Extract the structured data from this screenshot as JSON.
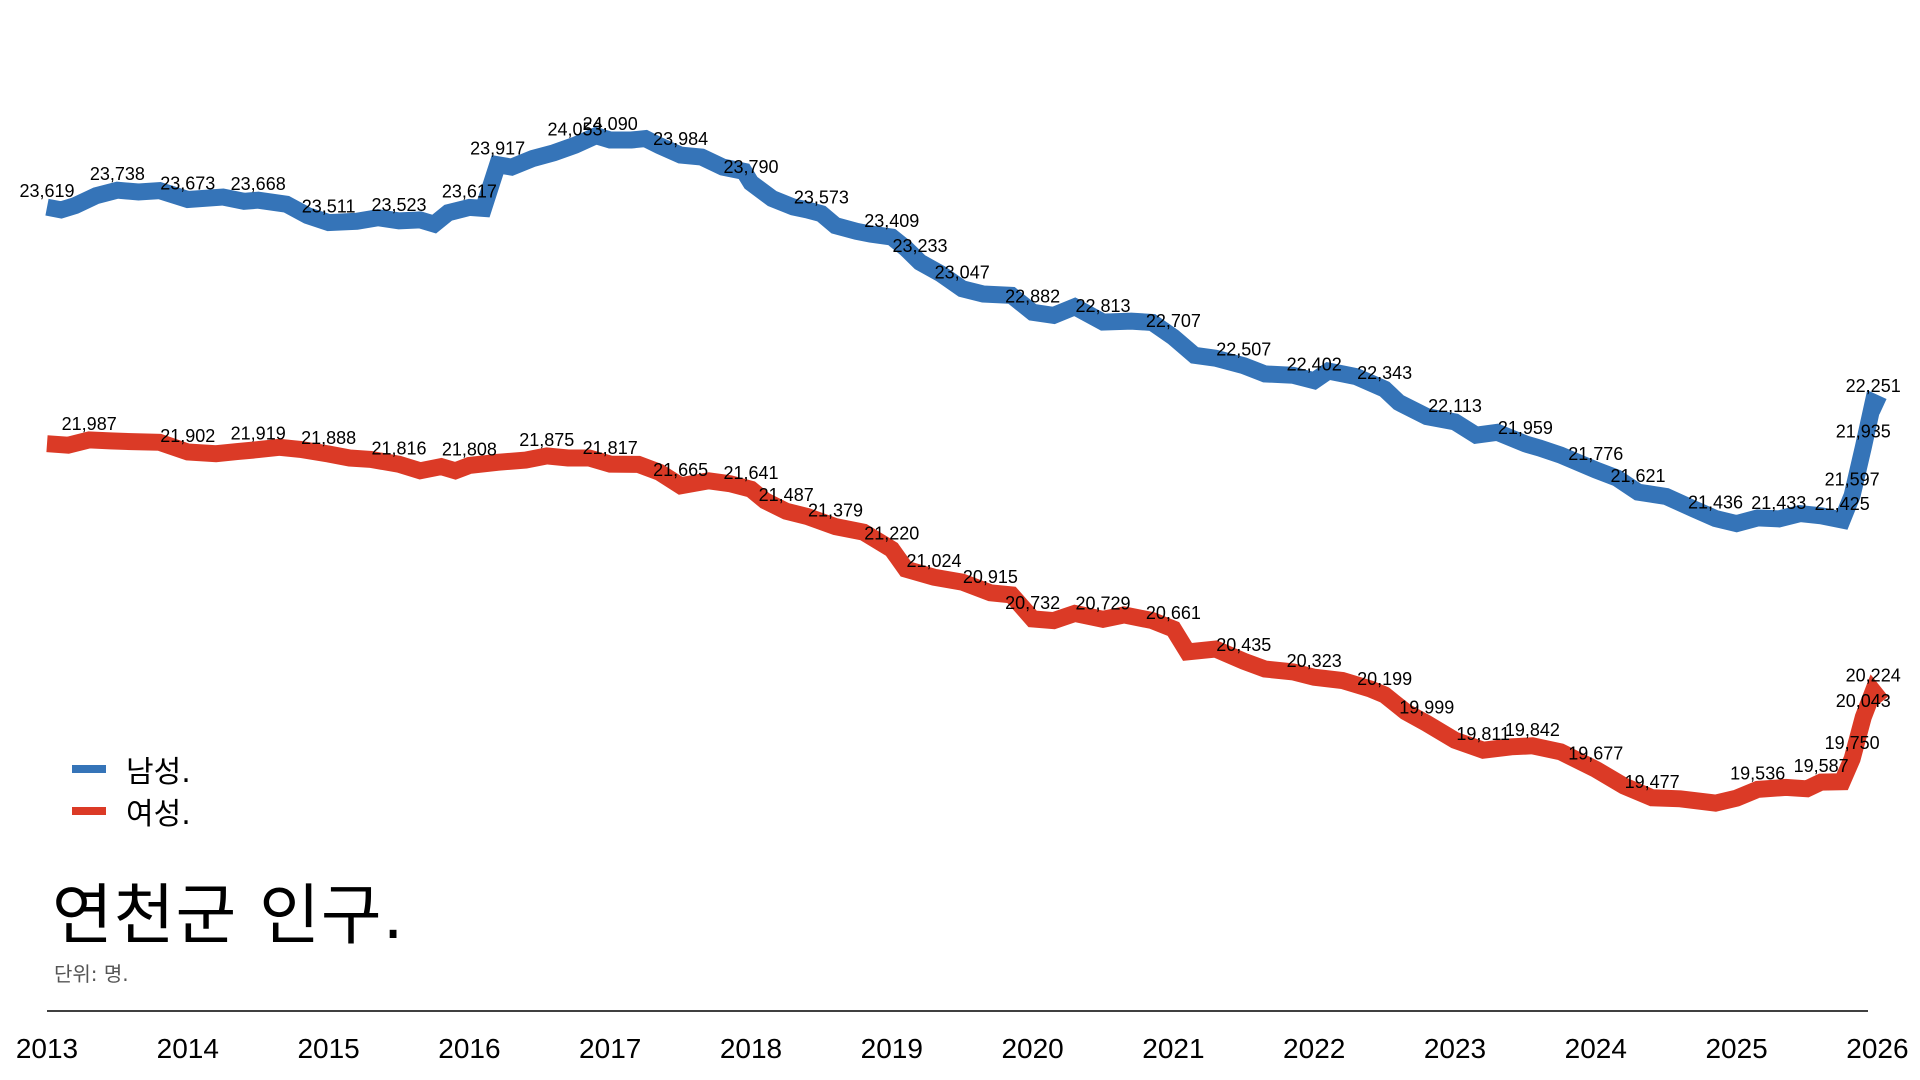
{
  "chart_data": {
    "type": "line",
    "title": "연천군 인구.",
    "subtitle": "단위: 명.",
    "xlabel": "",
    "ylabel": "",
    "xlim": [
      2013,
      2026
    ],
    "ylim": [
      19300,
      24200
    ],
    "grid": false,
    "legend_position": "bottom-left",
    "x_ticks": [
      "2013",
      "2014",
      "2015",
      "2016",
      "2017",
      "2018",
      "2019",
      "2020",
      "2021",
      "2022",
      "2023",
      "2024",
      "2025",
      "2026"
    ],
    "series": [
      {
        "name": "남성.",
        "color": "#3574b8",
        "points": [
          {
            "x": 2013.0,
            "y": 23619,
            "label": "23,619"
          },
          {
            "x": 2013.1,
            "y": 23600
          },
          {
            "x": 2013.2,
            "y": 23630
          },
          {
            "x": 2013.35,
            "y": 23700
          },
          {
            "x": 2013.5,
            "y": 23738,
            "label": "23,738"
          },
          {
            "x": 2013.65,
            "y": 23725
          },
          {
            "x": 2013.8,
            "y": 23735
          },
          {
            "x": 2014.0,
            "y": 23673,
            "label": "23,673"
          },
          {
            "x": 2014.25,
            "y": 23690
          },
          {
            "x": 2014.4,
            "y": 23660
          },
          {
            "x": 2014.5,
            "y": 23668,
            "label": "23,668"
          },
          {
            "x": 2014.7,
            "y": 23640
          },
          {
            "x": 2014.85,
            "y": 23560
          },
          {
            "x": 2015.0,
            "y": 23511,
            "label": "23,511"
          },
          {
            "x": 2015.2,
            "y": 23520
          },
          {
            "x": 2015.35,
            "y": 23545
          },
          {
            "x": 2015.5,
            "y": 23523,
            "label": "23,523"
          },
          {
            "x": 2015.65,
            "y": 23530
          },
          {
            "x": 2015.75,
            "y": 23500
          },
          {
            "x": 2015.85,
            "y": 23580
          },
          {
            "x": 2016.0,
            "y": 23617,
            "label": "23,617"
          },
          {
            "x": 2016.1,
            "y": 23610
          },
          {
            "x": 2016.2,
            "y": 23917,
            "label": "23,917"
          },
          {
            "x": 2016.3,
            "y": 23900
          },
          {
            "x": 2016.45,
            "y": 23960
          },
          {
            "x": 2016.6,
            "y": 24000
          },
          {
            "x": 2016.75,
            "y": 24053,
            "label": "24,053"
          },
          {
            "x": 2016.9,
            "y": 24120
          },
          {
            "x": 2017.0,
            "y": 24090,
            "label": "24,090"
          },
          {
            "x": 2017.15,
            "y": 24090
          },
          {
            "x": 2017.25,
            "y": 24100
          },
          {
            "x": 2017.35,
            "y": 24050
          },
          {
            "x": 2017.5,
            "y": 23984,
            "label": "23,984"
          },
          {
            "x": 2017.65,
            "y": 23970
          },
          {
            "x": 2017.8,
            "y": 23900
          },
          {
            "x": 2017.95,
            "y": 23870
          },
          {
            "x": 2018.0,
            "y": 23790,
            "label": "23,790"
          },
          {
            "x": 2018.15,
            "y": 23680
          },
          {
            "x": 2018.3,
            "y": 23620
          },
          {
            "x": 2018.4,
            "y": 23600
          },
          {
            "x": 2018.5,
            "y": 23573,
            "label": "23,573"
          },
          {
            "x": 2018.6,
            "y": 23490
          },
          {
            "x": 2018.75,
            "y": 23450
          },
          {
            "x": 2018.85,
            "y": 23430
          },
          {
            "x": 2019.0,
            "y": 23409,
            "label": "23,409"
          },
          {
            "x": 2019.1,
            "y": 23330
          },
          {
            "x": 2019.2,
            "y": 23233,
            "label": "23,233"
          },
          {
            "x": 2019.35,
            "y": 23150
          },
          {
            "x": 2019.5,
            "y": 23047,
            "label": "23,047"
          },
          {
            "x": 2019.65,
            "y": 23010
          },
          {
            "x": 2019.85,
            "y": 23000
          },
          {
            "x": 2020.0,
            "y": 22882,
            "label": "22,882"
          },
          {
            "x": 2020.15,
            "y": 22860
          },
          {
            "x": 2020.3,
            "y": 22920
          },
          {
            "x": 2020.5,
            "y": 22813,
            "label": "22,813"
          },
          {
            "x": 2020.7,
            "y": 22820
          },
          {
            "x": 2020.85,
            "y": 22810
          },
          {
            "x": 2021.0,
            "y": 22707,
            "label": "22,707"
          },
          {
            "x": 2021.15,
            "y": 22580
          },
          {
            "x": 2021.3,
            "y": 22560
          },
          {
            "x": 2021.5,
            "y": 22507,
            "label": "22,507"
          },
          {
            "x": 2021.65,
            "y": 22450
          },
          {
            "x": 2021.85,
            "y": 22440
          },
          {
            "x": 2022.0,
            "y": 22402,
            "label": "22,402"
          },
          {
            "x": 2022.1,
            "y": 22470
          },
          {
            "x": 2022.3,
            "y": 22430
          },
          {
            "x": 2022.5,
            "y": 22343,
            "label": "22,343"
          },
          {
            "x": 2022.6,
            "y": 22250
          },
          {
            "x": 2022.8,
            "y": 22150
          },
          {
            "x": 2023.0,
            "y": 22113,
            "label": "22,113"
          },
          {
            "x": 2023.15,
            "y": 22020
          },
          {
            "x": 2023.3,
            "y": 22040
          },
          {
            "x": 2023.5,
            "y": 21959,
            "label": "21,959"
          },
          {
            "x": 2023.6,
            "y": 21930
          },
          {
            "x": 2023.75,
            "y": 21880
          },
          {
            "x": 2024.0,
            "y": 21776,
            "label": "21,776"
          },
          {
            "x": 2024.15,
            "y": 21720
          },
          {
            "x": 2024.3,
            "y": 21621,
            "label": "21,621"
          },
          {
            "x": 2024.5,
            "y": 21590
          },
          {
            "x": 2024.7,
            "y": 21500
          },
          {
            "x": 2024.85,
            "y": 21436,
            "label": "21,436"
          },
          {
            "x": 2025.0,
            "y": 21400
          },
          {
            "x": 2025.15,
            "y": 21440
          },
          {
            "x": 2025.3,
            "y": 21433,
            "label": "21,433"
          },
          {
            "x": 2025.45,
            "y": 21470
          },
          {
            "x": 2025.6,
            "y": 21455
          },
          {
            "x": 2025.75,
            "y": 21425,
            "label": "21,425"
          },
          {
            "x": 2025.82,
            "y": 21597,
            "label": "21,597"
          },
          {
            "x": 2025.9,
            "y": 21935,
            "label": "21,935"
          },
          {
            "x": 2025.97,
            "y": 22251,
            "label": "22,251"
          },
          {
            "x": 2026.04,
            "y": 22220
          }
        ]
      },
      {
        "name": "여성.",
        "color": "#db3a26",
        "points": [
          {
            "x": 2013.0,
            "y": 21960
          },
          {
            "x": 2013.15,
            "y": 21950
          },
          {
            "x": 2013.3,
            "y": 21987,
            "label": "21,987"
          },
          {
            "x": 2013.45,
            "y": 21980
          },
          {
            "x": 2013.6,
            "y": 21975
          },
          {
            "x": 2013.8,
            "y": 21970
          },
          {
            "x": 2014.0,
            "y": 21902,
            "label": "21,902"
          },
          {
            "x": 2014.2,
            "y": 21890
          },
          {
            "x": 2014.35,
            "y": 21905
          },
          {
            "x": 2014.5,
            "y": 21919,
            "label": "21,919"
          },
          {
            "x": 2014.65,
            "y": 21935
          },
          {
            "x": 2014.8,
            "y": 21920
          },
          {
            "x": 2015.0,
            "y": 21888,
            "label": "21,888"
          },
          {
            "x": 2015.15,
            "y": 21860
          },
          {
            "x": 2015.3,
            "y": 21850
          },
          {
            "x": 2015.5,
            "y": 21816,
            "label": "21,816"
          },
          {
            "x": 2015.65,
            "y": 21770
          },
          {
            "x": 2015.8,
            "y": 21800
          },
          {
            "x": 2015.9,
            "y": 21770
          },
          {
            "x": 2016.0,
            "y": 21808,
            "label": "21,808"
          },
          {
            "x": 2016.2,
            "y": 21830
          },
          {
            "x": 2016.4,
            "y": 21845
          },
          {
            "x": 2016.55,
            "y": 21875,
            "label": "21,875"
          },
          {
            "x": 2016.7,
            "y": 21860
          },
          {
            "x": 2016.85,
            "y": 21860
          },
          {
            "x": 2017.0,
            "y": 21817,
            "label": "21,817"
          },
          {
            "x": 2017.2,
            "y": 21815
          },
          {
            "x": 2017.35,
            "y": 21760
          },
          {
            "x": 2017.5,
            "y": 21665,
            "label": "21,665"
          },
          {
            "x": 2017.7,
            "y": 21700
          },
          {
            "x": 2017.85,
            "y": 21680
          },
          {
            "x": 2018.0,
            "y": 21641,
            "label": "21,641"
          },
          {
            "x": 2018.1,
            "y": 21560
          },
          {
            "x": 2018.25,
            "y": 21487,
            "label": "21,487"
          },
          {
            "x": 2018.4,
            "y": 21450
          },
          {
            "x": 2018.6,
            "y": 21379,
            "label": "21,379"
          },
          {
            "x": 2018.8,
            "y": 21340
          },
          {
            "x": 2019.0,
            "y": 21220,
            "label": "21,220"
          },
          {
            "x": 2019.1,
            "y": 21080
          },
          {
            "x": 2019.3,
            "y": 21024,
            "label": "21,024"
          },
          {
            "x": 2019.5,
            "y": 20990
          },
          {
            "x": 2019.7,
            "y": 20915,
            "label": "20,915"
          },
          {
            "x": 2019.85,
            "y": 20900
          },
          {
            "x": 2020.0,
            "y": 20732,
            "label": "20,732"
          },
          {
            "x": 2020.15,
            "y": 20720
          },
          {
            "x": 2020.3,
            "y": 20770
          },
          {
            "x": 2020.5,
            "y": 20729,
            "label": "20,729"
          },
          {
            "x": 2020.65,
            "y": 20760
          },
          {
            "x": 2020.85,
            "y": 20720
          },
          {
            "x": 2021.0,
            "y": 20661,
            "label": "20,661"
          },
          {
            "x": 2021.1,
            "y": 20500
          },
          {
            "x": 2021.3,
            "y": 20520
          },
          {
            "x": 2021.5,
            "y": 20435,
            "label": "20,435"
          },
          {
            "x": 2021.65,
            "y": 20380
          },
          {
            "x": 2021.85,
            "y": 20360
          },
          {
            "x": 2022.0,
            "y": 20323,
            "label": "20,323"
          },
          {
            "x": 2022.2,
            "y": 20300
          },
          {
            "x": 2022.4,
            "y": 20240
          },
          {
            "x": 2022.5,
            "y": 20199,
            "label": "20,199"
          },
          {
            "x": 2022.65,
            "y": 20080
          },
          {
            "x": 2022.8,
            "y": 19999,
            "label": "19,999"
          },
          {
            "x": 2023.0,
            "y": 19880
          },
          {
            "x": 2023.2,
            "y": 19811,
            "label": "19,811"
          },
          {
            "x": 2023.4,
            "y": 19835
          },
          {
            "x": 2023.55,
            "y": 19842,
            "label": "19,842"
          },
          {
            "x": 2023.75,
            "y": 19800
          },
          {
            "x": 2024.0,
            "y": 19677,
            "label": "19,677"
          },
          {
            "x": 2024.2,
            "y": 19560
          },
          {
            "x": 2024.4,
            "y": 19477,
            "label": "19,477"
          },
          {
            "x": 2024.6,
            "y": 19470
          },
          {
            "x": 2024.85,
            "y": 19440
          },
          {
            "x": 2025.0,
            "y": 19475
          },
          {
            "x": 2025.15,
            "y": 19536,
            "label": "19,536"
          },
          {
            "x": 2025.35,
            "y": 19550
          },
          {
            "x": 2025.5,
            "y": 19540
          },
          {
            "x": 2025.6,
            "y": 19587,
            "label": "19,587"
          },
          {
            "x": 2025.75,
            "y": 19590
          },
          {
            "x": 2025.82,
            "y": 19750,
            "label": "19,750"
          },
          {
            "x": 2025.9,
            "y": 20043,
            "label": "20,043"
          },
          {
            "x": 2025.97,
            "y": 20224,
            "label": "20,224"
          },
          {
            "x": 2026.03,
            "y": 20150
          }
        ]
      }
    ]
  }
}
